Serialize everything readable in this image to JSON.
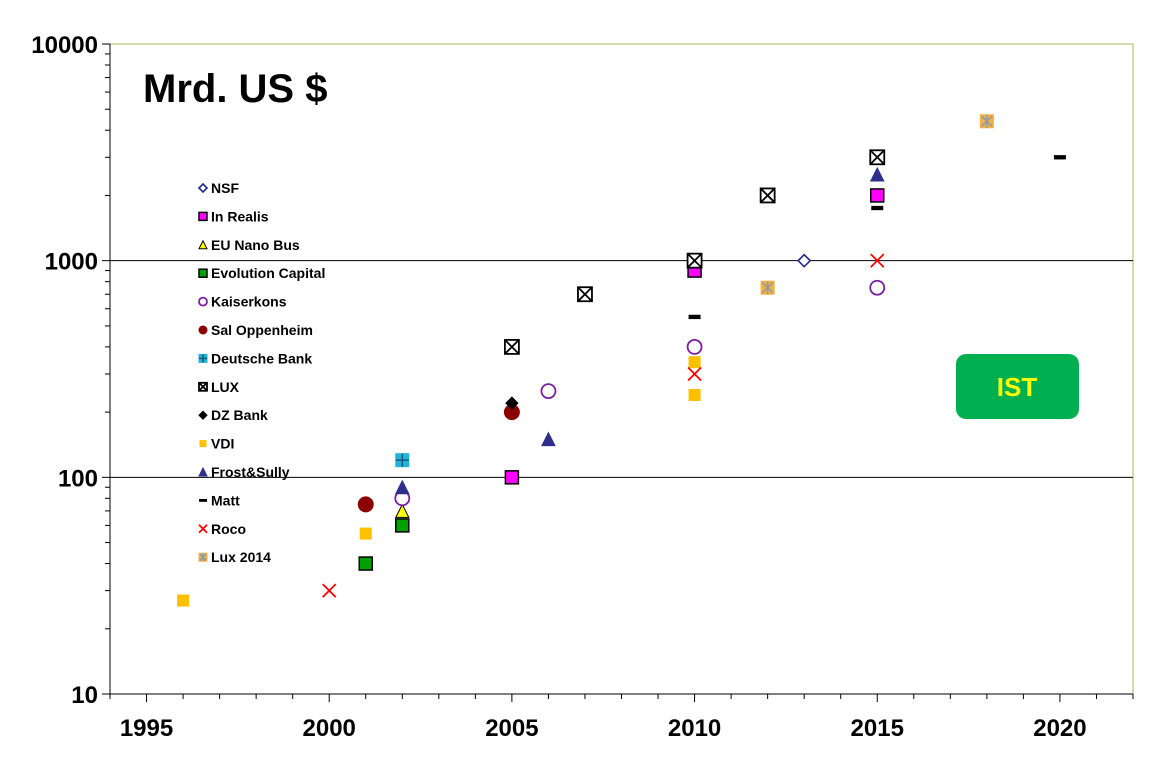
{
  "chart_data": {
    "type": "scatter",
    "title": "Mrd. US $",
    "xlabel": "",
    "ylabel": "",
    "xlim": [
      1994,
      2022
    ],
    "ylim": [
      10,
      10000
    ],
    "yscale": "log",
    "x_ticks": [
      1995,
      2000,
      2005,
      2010,
      2015,
      2020
    ],
    "y_ticks": [
      10,
      100,
      1000,
      10000
    ],
    "gridlines_y": [
      100,
      1000
    ],
    "legend_position": "left",
    "badge": {
      "text": "IST",
      "fill": "#00b050",
      "text_color": "#ffff00"
    },
    "series": [
      {
        "name": "NSF",
        "marker": "diamond-open",
        "color": "#1f2a8a",
        "points": [
          [
            2013,
            1000
          ]
        ]
      },
      {
        "name": "In Realis",
        "marker": "square",
        "color": "#ff00ff",
        "points": [
          [
            2005,
            100
          ],
          [
            2010,
            900
          ],
          [
            2015,
            2000
          ]
        ]
      },
      {
        "name": "EU Nano Bus",
        "marker": "triangle",
        "color": "#ffff00",
        "points": [
          [
            2002,
            70
          ]
        ]
      },
      {
        "name": "Evolution Capital",
        "marker": "square",
        "color": "#00a000",
        "points": [
          [
            2001,
            40
          ],
          [
            2002,
            60
          ]
        ]
      },
      {
        "name": "Kaiserkons",
        "marker": "circle-open",
        "color": "#7b1fa2",
        "points": [
          [
            2002,
            80
          ],
          [
            2006,
            250
          ],
          [
            2010,
            400
          ],
          [
            2015,
            750
          ]
        ]
      },
      {
        "name": "Sal Oppenheim",
        "marker": "circle",
        "color": "#8b0000",
        "points": [
          [
            2001,
            75
          ],
          [
            2005,
            200
          ]
        ]
      },
      {
        "name": "Deutsche Bank",
        "marker": "plus-square",
        "color": "#1fb4d8",
        "points": [
          [
            2002,
            120
          ]
        ]
      },
      {
        "name": "LUX",
        "marker": "x-square",
        "color": "#000000",
        "points": [
          [
            2005,
            400
          ],
          [
            2007,
            700
          ],
          [
            2010,
            1000
          ],
          [
            2012,
            2000
          ],
          [
            2015,
            3000
          ]
        ]
      },
      {
        "name": "DZ Bank",
        "marker": "diamond",
        "color": "#000000",
        "points": [
          [
            2005,
            220
          ]
        ]
      },
      {
        "name": "VDI",
        "marker": "square",
        "color": "#ffc000",
        "points": [
          [
            1996,
            27
          ],
          [
            2001,
            55
          ],
          [
            2010,
            240
          ],
          [
            2010,
            340
          ],
          [
            2012,
            750
          ]
        ]
      },
      {
        "name": "Frost&Sully",
        "marker": "triangle",
        "color": "#2e2e8c",
        "points": [
          [
            2002,
            90
          ],
          [
            2006,
            150
          ],
          [
            2015,
            2500
          ]
        ]
      },
      {
        "name": "Matt",
        "marker": "dash",
        "color": "#000000",
        "points": [
          [
            2010,
            550
          ],
          [
            2015,
            1750
          ],
          [
            2020,
            3000
          ]
        ]
      },
      {
        "name": "Roco",
        "marker": "x",
        "color": "#ff0000",
        "points": [
          [
            2000,
            30
          ],
          [
            2010,
            300
          ],
          [
            2015,
            1000
          ]
        ]
      },
      {
        "name": "Lux 2014",
        "marker": "star-square",
        "color": "#c8a050",
        "points": [
          [
            2012,
            750
          ],
          [
            2018,
            4400
          ]
        ]
      }
    ]
  }
}
